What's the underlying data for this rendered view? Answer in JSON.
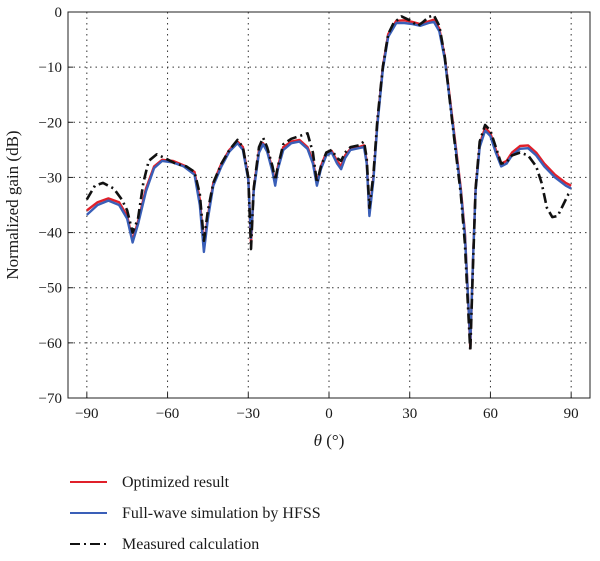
{
  "chart_data": {
    "type": "line",
    "title": "",
    "xlabel_symbol": "θ",
    "xlabel_unit": "(°)",
    "ylabel": "Normalized gain (dB)",
    "xlim": [
      -97,
      97
    ],
    "ylim": [
      -70,
      0
    ],
    "xticks": [
      -90,
      -60,
      -30,
      0,
      30,
      60,
      90
    ],
    "yticks": [
      0,
      -10,
      -20,
      -30,
      -40,
      -50,
      -60,
      -70
    ],
    "grid": true,
    "legend_position": "bottom-left, below plot",
    "series": [
      {
        "name": "Optimized result",
        "color": "#e0202a",
        "style": "solid",
        "points": [
          [
            -90,
            -36
          ],
          [
            -86,
            -34.5
          ],
          [
            -82,
            -33.8
          ],
          [
            -78,
            -34.5
          ],
          [
            -75,
            -37
          ],
          [
            -73,
            -41.5
          ],
          [
            -71,
            -38
          ],
          [
            -68,
            -32
          ],
          [
            -65,
            -28
          ],
          [
            -62,
            -26.8
          ],
          [
            -58,
            -27
          ],
          [
            -54,
            -27.8
          ],
          [
            -50,
            -29
          ],
          [
            -48,
            -34
          ],
          [
            -46.5,
            -42.5
          ],
          [
            -45,
            -37
          ],
          [
            -43,
            -31
          ],
          [
            -40,
            -27.5
          ],
          [
            -37,
            -25
          ],
          [
            -34,
            -23.5
          ],
          [
            -32,
            -24.5
          ],
          [
            -30,
            -30
          ],
          [
            -29,
            -42
          ],
          [
            -28,
            -32
          ],
          [
            -26,
            -25
          ],
          [
            -24.5,
            -23.8
          ],
          [
            -23,
            -25
          ],
          [
            -21,
            -28.5
          ],
          [
            -20,
            -31
          ],
          [
            -19,
            -28
          ],
          [
            -17,
            -24.5
          ],
          [
            -14,
            -23.5
          ],
          [
            -11,
            -23.2
          ],
          [
            -8,
            -24.5
          ],
          [
            -6,
            -27
          ],
          [
            -4.5,
            -31
          ],
          [
            -3,
            -28
          ],
          [
            -1,
            -25.5
          ],
          [
            1,
            -25.2
          ],
          [
            3,
            -27
          ],
          [
            4.5,
            -28
          ],
          [
            6,
            -26
          ],
          [
            8,
            -24.8
          ],
          [
            11,
            -24.5
          ],
          [
            13,
            -24.2
          ],
          [
            14,
            -27
          ],
          [
            15,
            -36.5
          ],
          [
            16.5,
            -30
          ],
          [
            18,
            -20
          ],
          [
            20,
            -10
          ],
          [
            22,
            -4
          ],
          [
            25,
            -1.6
          ],
          [
            28,
            -1.5
          ],
          [
            31,
            -1.8
          ],
          [
            34,
            -2.2
          ],
          [
            37,
            -1.7
          ],
          [
            39,
            -1.4
          ],
          [
            41,
            -3
          ],
          [
            43,
            -8
          ],
          [
            45,
            -16
          ],
          [
            47,
            -24
          ],
          [
            49,
            -32
          ],
          [
            50.5,
            -40
          ],
          [
            51.5,
            -50
          ],
          [
            52.5,
            -61
          ],
          [
            53.5,
            -45
          ],
          [
            54.5,
            -32
          ],
          [
            56,
            -24
          ],
          [
            58,
            -21
          ],
          [
            60,
            -22
          ],
          [
            62,
            -25
          ],
          [
            64,
            -27.5
          ],
          [
            66,
            -27
          ],
          [
            68,
            -25.5
          ],
          [
            71,
            -24.3
          ],
          [
            74,
            -24.2
          ],
          [
            77,
            -25.5
          ],
          [
            80,
            -27.5
          ],
          [
            84,
            -29.5
          ],
          [
            88,
            -31
          ],
          [
            90,
            -31.5
          ]
        ]
      },
      {
        "name": "Full-wave simulation by HFSS",
        "color": "#3a5fb8",
        "style": "solid",
        "points": [
          [
            -90,
            -36.8
          ],
          [
            -86,
            -35
          ],
          [
            -82,
            -34.2
          ],
          [
            -78,
            -35
          ],
          [
            -75,
            -37.5
          ],
          [
            -73,
            -41.8
          ],
          [
            -71,
            -38.5
          ],
          [
            -68,
            -32.5
          ],
          [
            -65,
            -28.3
          ],
          [
            -62,
            -27
          ],
          [
            -58,
            -27.3
          ],
          [
            -54,
            -28
          ],
          [
            -50,
            -29.5
          ],
          [
            -48,
            -35
          ],
          [
            -46.5,
            -43.5
          ],
          [
            -45,
            -37.5
          ],
          [
            -43,
            -31.5
          ],
          [
            -40,
            -28
          ],
          [
            -37,
            -25.3
          ],
          [
            -34,
            -23.8
          ],
          [
            -32,
            -25
          ],
          [
            -30,
            -30.5
          ],
          [
            -29,
            -41
          ],
          [
            -28,
            -32.5
          ],
          [
            -26,
            -25.5
          ],
          [
            -24.5,
            -24
          ],
          [
            -23,
            -25.3
          ],
          [
            -21,
            -29
          ],
          [
            -20,
            -31.5
          ],
          [
            -19,
            -28.5
          ],
          [
            -17,
            -25
          ],
          [
            -14,
            -23.8
          ],
          [
            -11,
            -23.5
          ],
          [
            -8,
            -24.8
          ],
          [
            -6,
            -27.5
          ],
          [
            -4.5,
            -31.5
          ],
          [
            -3,
            -28.5
          ],
          [
            -1,
            -26
          ],
          [
            1,
            -25.5
          ],
          [
            3,
            -27.5
          ],
          [
            4.5,
            -28.5
          ],
          [
            6,
            -26.5
          ],
          [
            8,
            -25
          ],
          [
            11,
            -24.7
          ],
          [
            13,
            -24.5
          ],
          [
            14,
            -27.5
          ],
          [
            15,
            -37
          ],
          [
            16.5,
            -30.5
          ],
          [
            18,
            -20.5
          ],
          [
            20,
            -10.5
          ],
          [
            22,
            -4.5
          ],
          [
            25,
            -2
          ],
          [
            28,
            -2
          ],
          [
            31,
            -2.2
          ],
          [
            34,
            -2.5
          ],
          [
            37,
            -2
          ],
          [
            39,
            -1.8
          ],
          [
            41,
            -3.5
          ],
          [
            43,
            -8.5
          ],
          [
            45,
            -16.5
          ],
          [
            47,
            -24.5
          ],
          [
            49,
            -32.5
          ],
          [
            50.5,
            -40.5
          ],
          [
            51.5,
            -50
          ],
          [
            52.5,
            -60
          ],
          [
            53.5,
            -45
          ],
          [
            54.5,
            -32.5
          ],
          [
            56,
            -24.5
          ],
          [
            58,
            -21.5
          ],
          [
            60,
            -22.5
          ],
          [
            62,
            -25.5
          ],
          [
            64,
            -28
          ],
          [
            66,
            -27.5
          ],
          [
            68,
            -26
          ],
          [
            71,
            -24.8
          ],
          [
            74,
            -24.7
          ],
          [
            77,
            -26
          ],
          [
            80,
            -28
          ],
          [
            84,
            -30
          ],
          [
            88,
            -31.5
          ],
          [
            90,
            -32
          ]
        ]
      },
      {
        "name": "Measured calculation",
        "color": "#111111",
        "style": "dashdot",
        "points": [
          [
            -90,
            -34
          ],
          [
            -87,
            -31.5
          ],
          [
            -84,
            -31
          ],
          [
            -80,
            -32
          ],
          [
            -77,
            -34
          ],
          [
            -75,
            -36
          ],
          [
            -73,
            -40
          ],
          [
            -71,
            -37.5
          ],
          [
            -69,
            -31
          ],
          [
            -67,
            -27
          ],
          [
            -64,
            -25.8
          ],
          [
            -61,
            -26.5
          ],
          [
            -57,
            -27.5
          ],
          [
            -53,
            -28
          ],
          [
            -50,
            -29
          ],
          [
            -48,
            -33
          ],
          [
            -46.5,
            -41.5
          ],
          [
            -45,
            -36
          ],
          [
            -43,
            -31
          ],
          [
            -40,
            -27.5
          ],
          [
            -37,
            -25
          ],
          [
            -34,
            -23.2
          ],
          [
            -32,
            -24.5
          ],
          [
            -30,
            -30
          ],
          [
            -29,
            -43
          ],
          [
            -28,
            -32
          ],
          [
            -26,
            -24.5
          ],
          [
            -24.5,
            -22.8
          ],
          [
            -23,
            -24.5
          ],
          [
            -21,
            -28
          ],
          [
            -20,
            -30.5
          ],
          [
            -19,
            -28
          ],
          [
            -17,
            -24
          ],
          [
            -14,
            -23
          ],
          [
            -11,
            -22.5
          ],
          [
            -8,
            -22
          ],
          [
            -6,
            -25.5
          ],
          [
            -4.5,
            -31
          ],
          [
            -3,
            -28
          ],
          [
            -1,
            -25.5
          ],
          [
            1,
            -25
          ],
          [
            3,
            -26.5
          ],
          [
            4.5,
            -27
          ],
          [
            6,
            -25.5
          ],
          [
            8,
            -24.5
          ],
          [
            11,
            -24.2
          ],
          [
            13,
            -23.5
          ],
          [
            14,
            -26.5
          ],
          [
            15,
            -35.5
          ],
          [
            16.5,
            -29.5
          ],
          [
            18,
            -19.5
          ],
          [
            20,
            -10
          ],
          [
            22,
            -4
          ],
          [
            24,
            -2
          ],
          [
            27,
            -0.8
          ],
          [
            30,
            -1.5
          ],
          [
            33,
            -2.5
          ],
          [
            35,
            -1.8
          ],
          [
            37,
            -0.9
          ],
          [
            39,
            -0.6
          ],
          [
            41,
            -2.5
          ],
          [
            43,
            -8
          ],
          [
            45,
            -16.5
          ],
          [
            47,
            -25
          ],
          [
            49,
            -33
          ],
          [
            50.5,
            -42
          ],
          [
            51.5,
            -52
          ],
          [
            52.5,
            -61.5
          ],
          [
            53.5,
            -46
          ],
          [
            54.5,
            -32
          ],
          [
            56,
            -23.5
          ],
          [
            58,
            -20.5
          ],
          [
            60,
            -21.5
          ],
          [
            62,
            -24.5
          ],
          [
            64,
            -27.5
          ],
          [
            66,
            -27.2
          ],
          [
            68,
            -26
          ],
          [
            71,
            -25.5
          ],
          [
            74,
            -26
          ],
          [
            77,
            -28
          ],
          [
            79,
            -31
          ],
          [
            81,
            -35.5
          ],
          [
            83,
            -37.2
          ],
          [
            85,
            -37
          ],
          [
            87,
            -35
          ],
          [
            89,
            -33
          ],
          [
            90,
            -32.5
          ]
        ]
      }
    ]
  }
}
